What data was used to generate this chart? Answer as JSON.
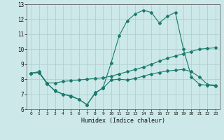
{
  "xlabel": "Humidex (Indice chaleur)",
  "xlim": [
    -0.5,
    23.5
  ],
  "ylim": [
    6,
    13
  ],
  "yticks": [
    6,
    7,
    8,
    9,
    10,
    11,
    12,
    13
  ],
  "xticks": [
    0,
    1,
    2,
    3,
    4,
    5,
    6,
    7,
    8,
    9,
    10,
    11,
    12,
    13,
    14,
    15,
    16,
    17,
    18,
    19,
    20,
    21,
    22,
    23
  ],
  "bg_color": "#cce8e8",
  "line_color": "#1a7a6e",
  "grid_color": "#aacccc",
  "lineA_x": [
    0,
    1,
    2,
    3,
    4,
    5,
    6,
    7,
    8,
    9,
    10,
    11,
    12,
    13,
    14,
    15,
    16,
    17,
    18,
    19,
    20,
    21,
    22,
    23
  ],
  "lineA_y": [
    8.4,
    8.5,
    7.75,
    7.2,
    7.0,
    6.85,
    6.65,
    6.3,
    7.05,
    7.45,
    9.1,
    10.9,
    11.9,
    12.35,
    12.6,
    12.45,
    11.75,
    12.2,
    12.45,
    10.0,
    8.15,
    7.65,
    7.6,
    7.55
  ],
  "lineB_x": [
    0,
    1,
    2,
    3,
    4,
    5,
    6,
    7,
    8,
    9,
    10,
    11,
    12,
    13,
    14,
    15,
    16,
    17,
    18,
    19,
    20,
    21,
    22,
    23
  ],
  "lineB_y": [
    8.4,
    8.45,
    7.75,
    7.75,
    7.85,
    7.9,
    7.95,
    8.0,
    8.05,
    8.1,
    8.2,
    8.35,
    8.5,
    8.65,
    8.8,
    9.0,
    9.2,
    9.4,
    9.55,
    9.7,
    9.85,
    10.0,
    10.05,
    10.1
  ],
  "lineC_x": [
    0,
    1,
    2,
    3,
    4,
    5,
    6,
    7,
    8,
    9,
    10,
    11,
    12,
    13,
    14,
    15,
    16,
    17,
    18,
    19,
    20,
    21,
    22,
    23
  ],
  "lineC_y": [
    8.4,
    8.45,
    7.7,
    7.25,
    7.0,
    6.9,
    6.65,
    6.3,
    7.1,
    7.4,
    7.95,
    8.0,
    7.95,
    8.05,
    8.2,
    8.35,
    8.45,
    8.55,
    8.6,
    8.65,
    8.5,
    8.15,
    7.65,
    7.6
  ]
}
